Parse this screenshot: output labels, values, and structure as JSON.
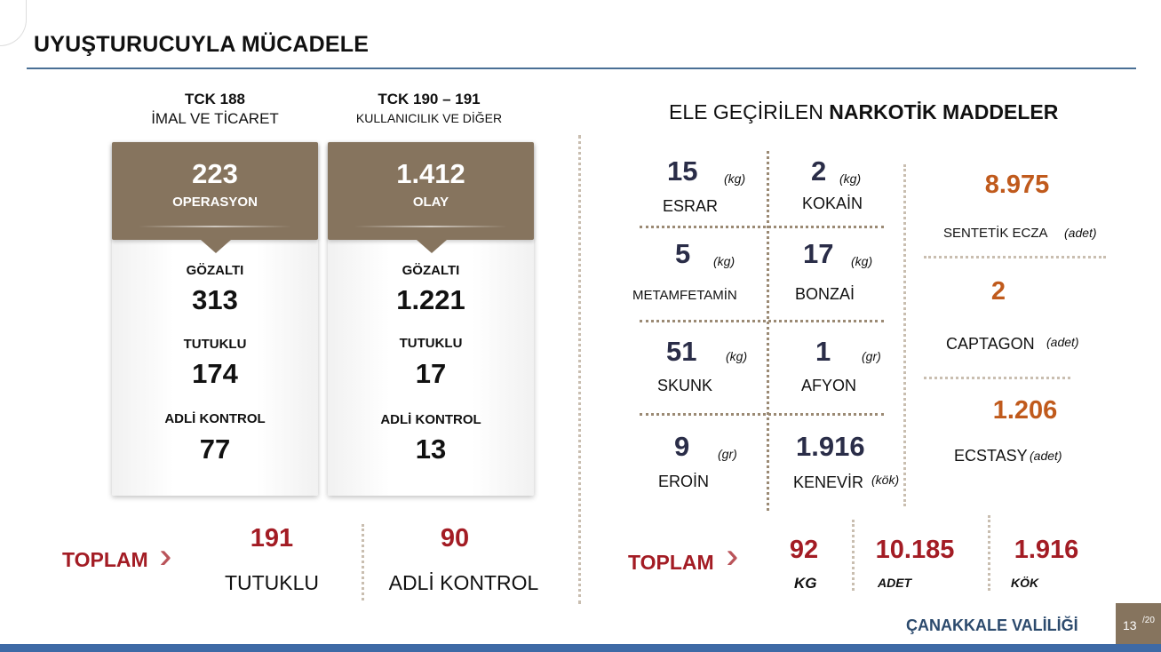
{
  "title": "UYUŞTURUCUYLA MÜCADELE",
  "left": {
    "col1": {
      "head_line1": "TCK 188",
      "head_line2": "İMAL VE TİCARET",
      "main_value": "223",
      "main_label": "OPERASYON",
      "stats": [
        {
          "label": "GÖZALTI",
          "value": "313"
        },
        {
          "label": "TUTUKLU",
          "value": "174"
        },
        {
          "label": "ADLİ KONTROL",
          "value": "77"
        }
      ]
    },
    "col2": {
      "head_line1": "TCK 190 – 191",
      "head_line2": "KULLANICILIK VE DİĞER",
      "main_value": "1.412",
      "main_label": "OLAY",
      "stats": [
        {
          "label": "GÖZALTI",
          "value": "1.221"
        },
        {
          "label": "TUTUKLU",
          "value": "17"
        },
        {
          "label": "ADLİ KONTROL",
          "value": "13"
        }
      ]
    },
    "totals": {
      "label": "TOPLAM",
      "items": [
        {
          "value": "191",
          "label": "TUTUKLU"
        },
        {
          "value": "90",
          "label": "ADLİ KONTROL"
        }
      ]
    }
  },
  "right": {
    "heading_prefix": "ELE GEÇİRİLEN",
    "heading_bold": "NARKOTİK MADDELER",
    "drugs": [
      {
        "value": "15",
        "unit": "(kg)",
        "name": "ESRAR"
      },
      {
        "value": "2",
        "unit": "(kg)",
        "name": "KOKAİN"
      },
      {
        "value": "5",
        "unit": "(kg)",
        "name": "METAMFETAMİN"
      },
      {
        "value": "17",
        "unit": "(kg)",
        "name": "BONZAİ"
      },
      {
        "value": "51",
        "unit": "(kg)",
        "name": "SKUNK"
      },
      {
        "value": "1",
        "unit": "(gr)",
        "name": "AFYON"
      },
      {
        "value": "9",
        "unit": "(gr)",
        "name": "EROİN"
      },
      {
        "value": "1.916",
        "unit": "(kök)",
        "name": "KENEVİR"
      }
    ],
    "others": [
      {
        "value": "8.975",
        "name": "SENTETİK ECZA",
        "unit": "(adet)"
      },
      {
        "value": "2",
        "name": "CAPTAGON",
        "unit": "(adet)"
      },
      {
        "value": "1.206",
        "name": "ECSTASY",
        "unit": "(adet)"
      }
    ],
    "totals": {
      "label": "TOPLAM",
      "items": [
        {
          "value": "92",
          "unit": "KG"
        },
        {
          "value": "10.185",
          "unit": "ADET"
        },
        {
          "value": "1.916",
          "unit": "KÖK"
        }
      ]
    }
  },
  "footer": {
    "brand": "ÇANAKKALE VALİLİĞİ",
    "page": "13",
    "total": "/20"
  },
  "colors": {
    "card_brown": "#86745e",
    "total_red": "#a31c24",
    "other_orange": "#c05a1c",
    "drug_navy": "#2a2d48",
    "footer_blue": "#3e6aa6"
  }
}
